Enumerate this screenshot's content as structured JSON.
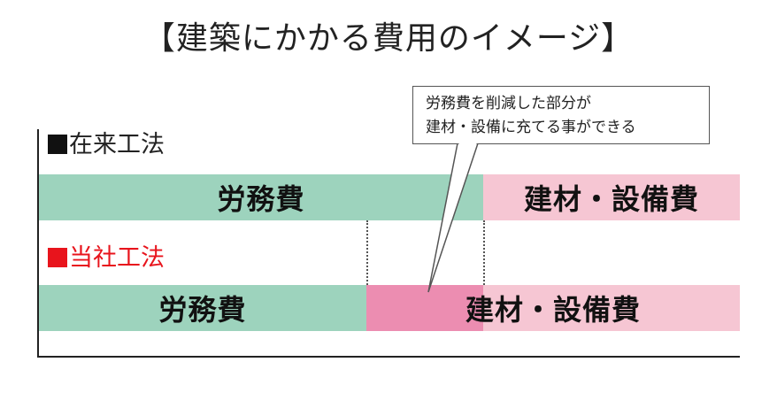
{
  "title": "【建築にかかる費用のイメージ】",
  "rows": {
    "conventional": {
      "label": "在来工法",
      "segment_labor": "労務費",
      "segment_materials": "建材・設備費"
    },
    "ours": {
      "label": "当社工法",
      "segment_labor": "労務費",
      "segment_materials": "建材・設備費"
    }
  },
  "callout": {
    "line1": "労務費を削減した部分が",
    "line2": "建材・設備に充てる事ができる"
  },
  "colors": {
    "labor": "#9dd3bd",
    "materials": "#f6c6d3",
    "saved_portion": "#ec8db1",
    "ours_label": "#e8141c"
  }
}
